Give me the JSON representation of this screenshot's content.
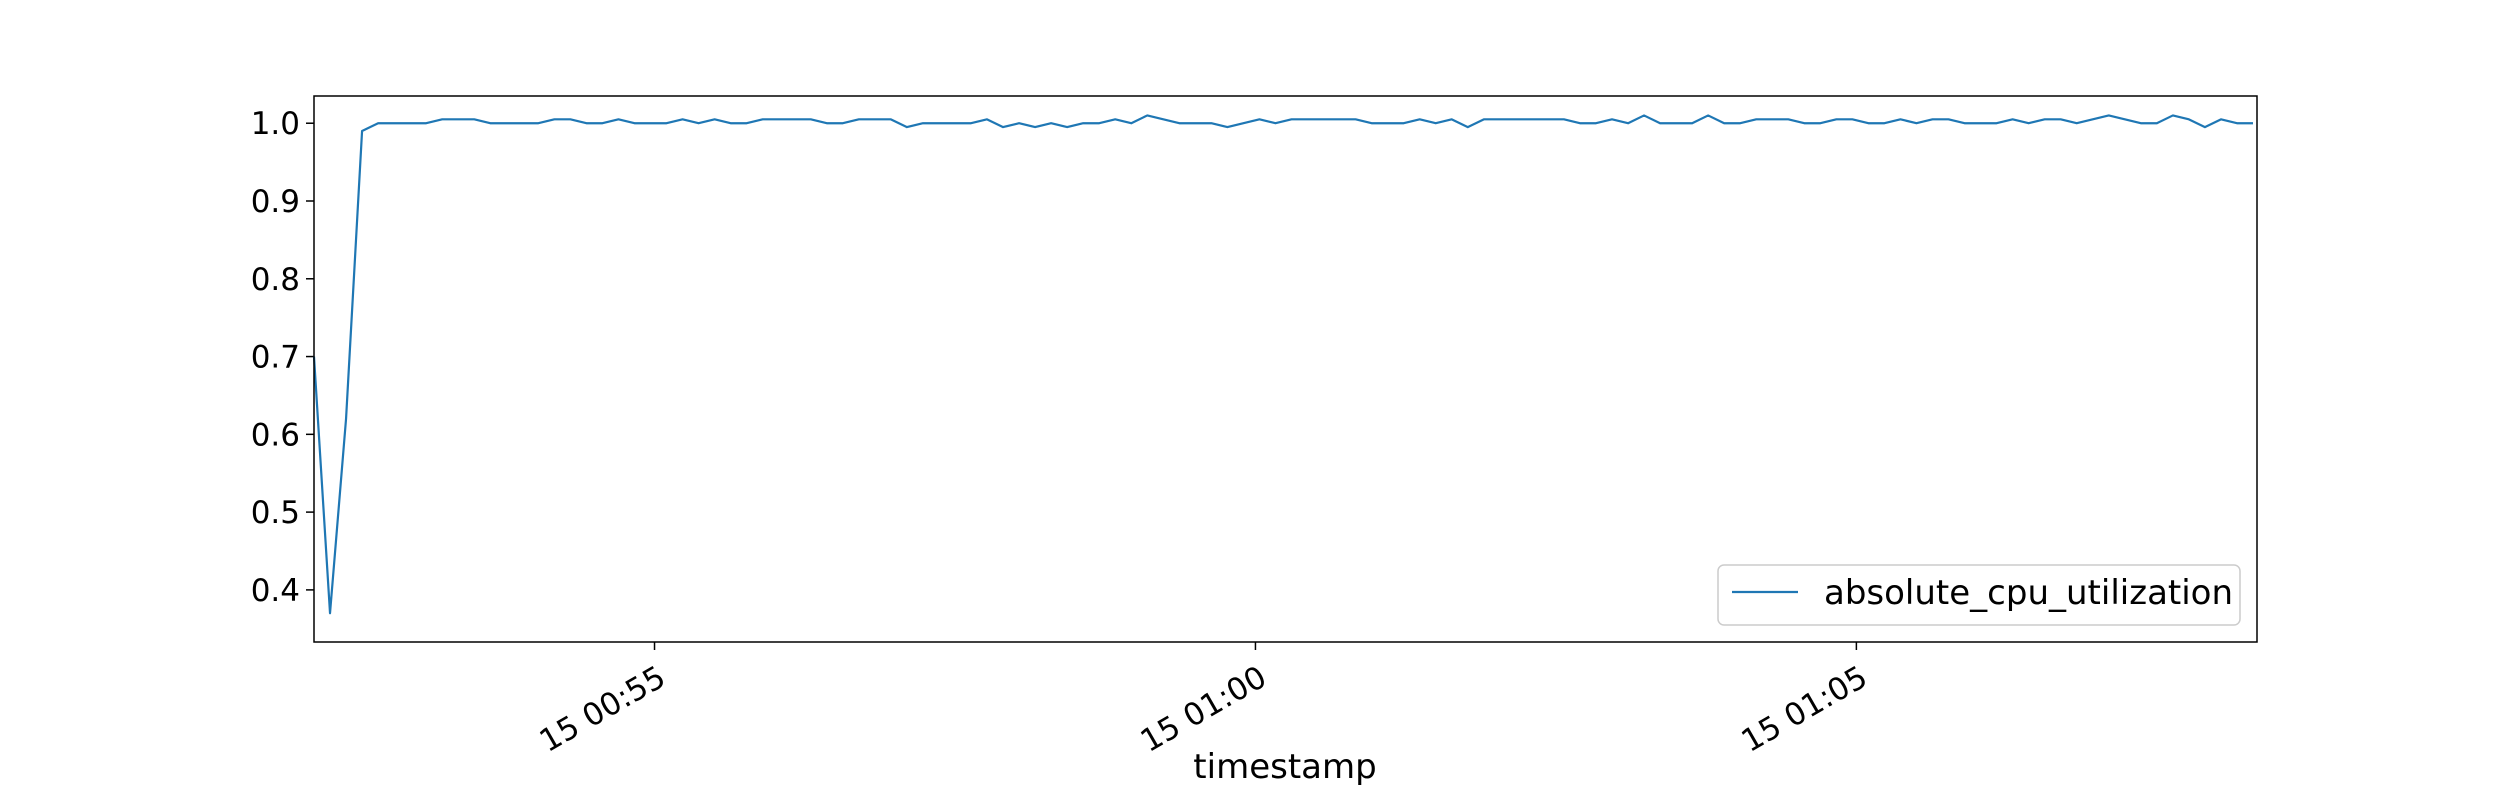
{
  "chart_data": {
    "type": "line",
    "title": "",
    "xlabel": "timestamp",
    "ylabel": "",
    "x_tick_labels": [
      "15 00:55",
      "15 01:00",
      "15 01:05"
    ],
    "x_tick_times": [
      "00:55:00",
      "01:00:00",
      "01:05:00"
    ],
    "x_range": [
      "00:52:10",
      "01:08:20"
    ],
    "y_ticks": [
      0.4,
      0.5,
      0.6,
      0.7,
      0.8,
      0.9,
      1.0
    ],
    "y_tick_labels": [
      "0.4",
      "0.5",
      "0.6",
      "0.7",
      "0.8",
      "0.9",
      "1.0"
    ],
    "ylim": [
      0.333,
      1.035
    ],
    "grid": false,
    "legend_position": "lower right",
    "series": [
      {
        "name": "absolute_cpu_utilization",
        "color": "#1f77b4",
        "x": [
          "00:52:10",
          "00:52:18",
          "00:52:26",
          "00:52:34",
          "00:52:42",
          "00:52:50",
          "00:52:58",
          "00:53:06",
          "00:53:14",
          "00:53:22",
          "00:53:30",
          "00:53:38",
          "00:53:46",
          "00:53:54",
          "00:54:02",
          "00:54:10",
          "00:54:18",
          "00:54:26",
          "00:54:34",
          "00:54:42",
          "00:54:50",
          "00:54:58",
          "00:55:06",
          "00:55:14",
          "00:55:22",
          "00:55:30",
          "00:55:38",
          "00:55:46",
          "00:55:54",
          "00:56:02",
          "00:56:10",
          "00:56:18",
          "00:56:26",
          "00:56:34",
          "00:56:42",
          "00:56:50",
          "00:56:58",
          "00:57:06",
          "00:57:14",
          "00:57:22",
          "00:57:30",
          "00:57:38",
          "00:57:46",
          "00:57:54",
          "00:58:02",
          "00:58:10",
          "00:58:18",
          "00:58:26",
          "00:58:34",
          "00:58:42",
          "00:58:50",
          "00:58:58",
          "00:59:06",
          "00:59:14",
          "00:59:22",
          "00:59:30",
          "00:59:38",
          "00:59:46",
          "00:59:54",
          "01:00:02",
          "01:00:10",
          "01:00:18",
          "01:00:26",
          "01:00:34",
          "01:00:42",
          "01:00:50",
          "01:00:58",
          "01:01:06",
          "01:01:14",
          "01:01:22",
          "01:01:30",
          "01:01:38",
          "01:01:46",
          "01:01:54",
          "01:02:02",
          "01:02:10",
          "01:02:18",
          "01:02:26",
          "01:02:34",
          "01:02:42",
          "01:02:50",
          "01:02:58",
          "01:03:06",
          "01:03:14",
          "01:03:22",
          "01:03:30",
          "01:03:38",
          "01:03:46",
          "01:03:54",
          "01:04:02",
          "01:04:10",
          "01:04:18",
          "01:04:26",
          "01:04:34",
          "01:04:42",
          "01:04:50",
          "01:04:58",
          "01:05:06",
          "01:05:14",
          "01:05:22",
          "01:05:30",
          "01:05:38",
          "01:05:46",
          "01:05:54",
          "01:06:02",
          "01:06:10",
          "01:06:18",
          "01:06:26",
          "01:06:34",
          "01:06:42",
          "01:06:50",
          "01:06:58",
          "01:07:06",
          "01:07:14",
          "01:07:22",
          "01:07:30",
          "01:07:38",
          "01:07:46",
          "01:07:54",
          "01:08:02",
          "01:08:10",
          "01:08:18"
        ],
        "y": [
          0.7,
          0.37,
          0.62,
          0.99,
          1.0,
          1.0,
          1.0,
          1.0,
          1.005,
          1.005,
          1.005,
          1.0,
          1.0,
          1.0,
          1.0,
          1.005,
          1.005,
          1.0,
          1.0,
          1.005,
          1.0,
          1.0,
          1.0,
          1.005,
          1.0,
          1.005,
          1.0,
          1.0,
          1.005,
          1.005,
          1.005,
          1.005,
          1.0,
          1.0,
          1.005,
          1.005,
          1.005,
          0.995,
          1.0,
          1.0,
          1.0,
          1.0,
          1.005,
          0.995,
          1.0,
          0.995,
          1.0,
          0.995,
          1.0,
          1.0,
          1.005,
          1.0,
          1.01,
          1.005,
          1.0,
          1.0,
          1.0,
          0.995,
          1.0,
          1.005,
          1.0,
          1.005,
          1.005,
          1.005,
          1.005,
          1.005,
          1.0,
          1.0,
          1.0,
          1.005,
          1.0,
          1.005,
          0.995,
          1.005,
          1.005,
          1.005,
          1.005,
          1.005,
          1.005,
          1.0,
          1.0,
          1.005,
          1.0,
          1.01,
          1.0,
          1.0,
          1.0,
          1.01,
          1.0,
          1.0,
          1.005,
          1.005,
          1.005,
          1.0,
          1.0,
          1.005,
          1.005,
          1.0,
          1.0,
          1.005,
          1.0,
          1.005,
          1.005,
          1.0,
          1.0,
          1.0,
          1.005,
          1.0,
          1.005,
          1.005,
          1.0,
          1.005,
          1.01,
          1.005,
          1.0,
          1.0,
          1.01,
          1.005,
          0.995,
          1.005,
          1.0,
          1.0
        ]
      }
    ]
  }
}
